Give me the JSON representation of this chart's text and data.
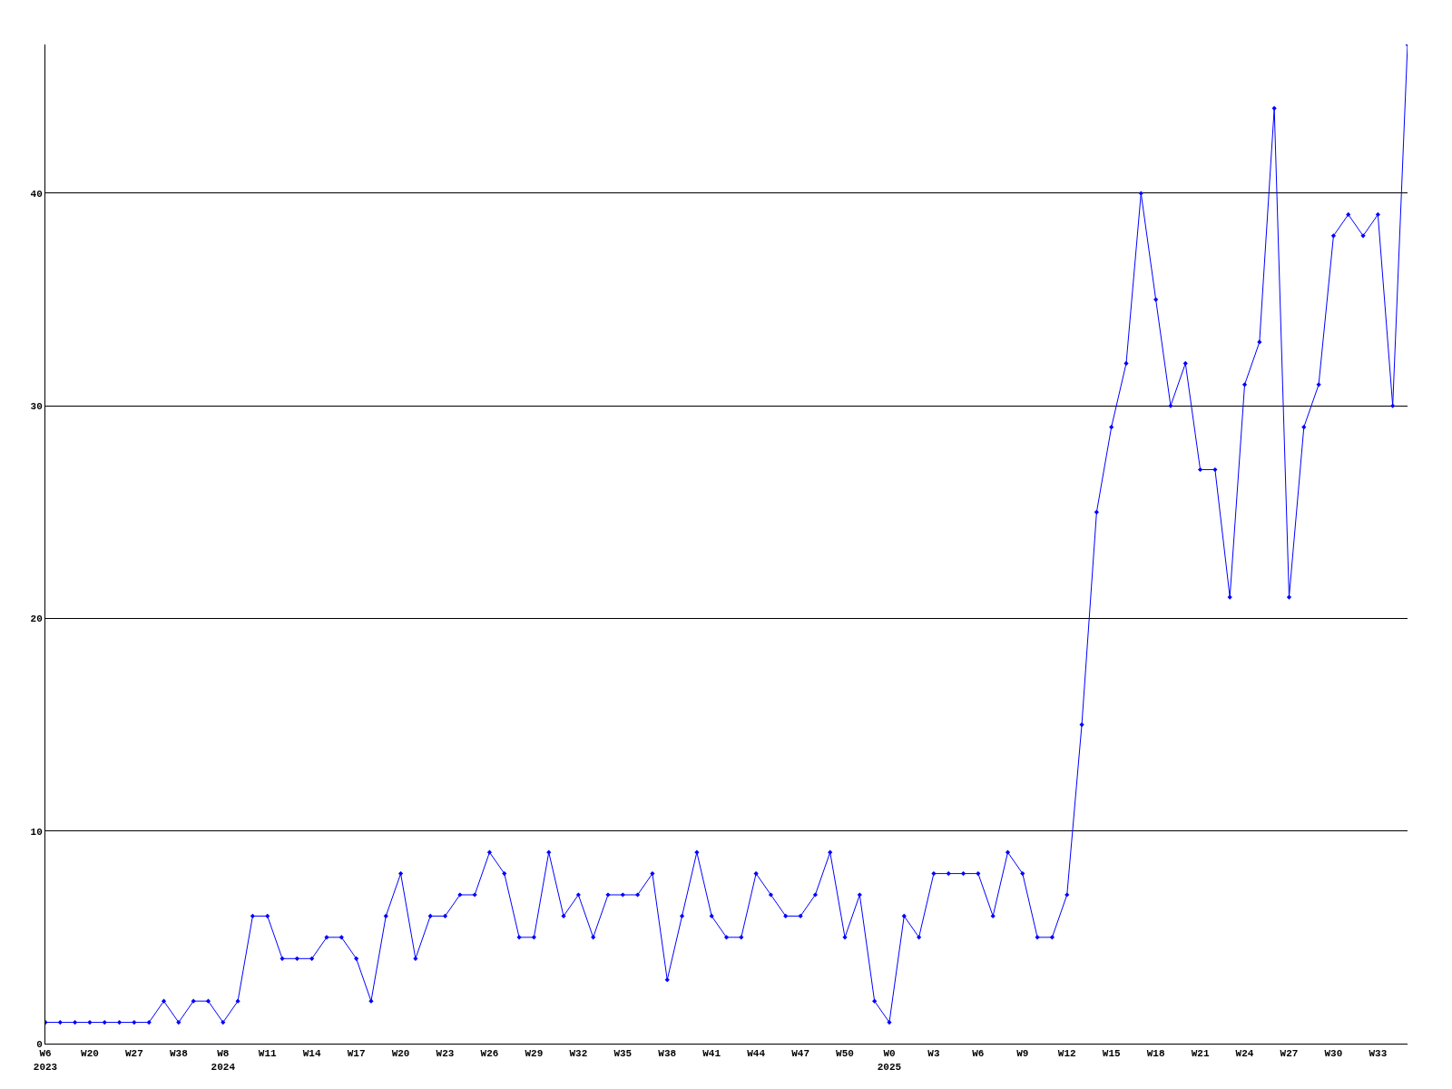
{
  "chart_data": {
    "type": "line",
    "categories": [
      "W6\n2023",
      null,
      null,
      "W20",
      null,
      null,
      "W27",
      null,
      null,
      "W38",
      null,
      null,
      "W8\n2024",
      null,
      null,
      "W11",
      null,
      null,
      "W14",
      null,
      null,
      "W17",
      null,
      null,
      "W20",
      null,
      null,
      "W23",
      null,
      null,
      "W26",
      null,
      null,
      "W29",
      null,
      null,
      "W32",
      null,
      null,
      "W35",
      null,
      null,
      "W38",
      null,
      null,
      "W41",
      null,
      null,
      "W44",
      null,
      null,
      "W47",
      null,
      null,
      "W50",
      null,
      null,
      "W0\n2025",
      null,
      null,
      "W3",
      null,
      null,
      "W6",
      null,
      null,
      "W9",
      null,
      null,
      "W12",
      null,
      null,
      "W15",
      null,
      null,
      "W18",
      null,
      null,
      "W21",
      null,
      null,
      "W24",
      null,
      null,
      "W27",
      null,
      null,
      "W30",
      null,
      null,
      "W33",
      null,
      null
    ],
    "series": [
      {
        "color": "#0000ff",
        "values": [
          1,
          1,
          1,
          1,
          1,
          1,
          1,
          1,
          2,
          1,
          2,
          2,
          1,
          2,
          6,
          6,
          4,
          4,
          4,
          5,
          5,
          4,
          2,
          6,
          8,
          4,
          6,
          6,
          7,
          7,
          9,
          8,
          5,
          5,
          9,
          6,
          7,
          5,
          7,
          7,
          7,
          8,
          3,
          6,
          9,
          6,
          5,
          5,
          8,
          7,
          6,
          6,
          7,
          9,
          5,
          7,
          2,
          1,
          6,
          5,
          8,
          8,
          8,
          8,
          6,
          9,
          8,
          5,
          5,
          7,
          15,
          25,
          29,
          32,
          40,
          35,
          30,
          32,
          27,
          27,
          21,
          31,
          33,
          44,
          21,
          29,
          31,
          38,
          39,
          38,
          39,
          30,
          47
        ]
      }
    ],
    "ylim": [
      0,
      47
    ],
    "yticks": [
      0,
      10,
      20,
      30,
      40
    ],
    "grid": "y",
    "marker": "diamond",
    "line_style": "solid",
    "legend": false
  }
}
